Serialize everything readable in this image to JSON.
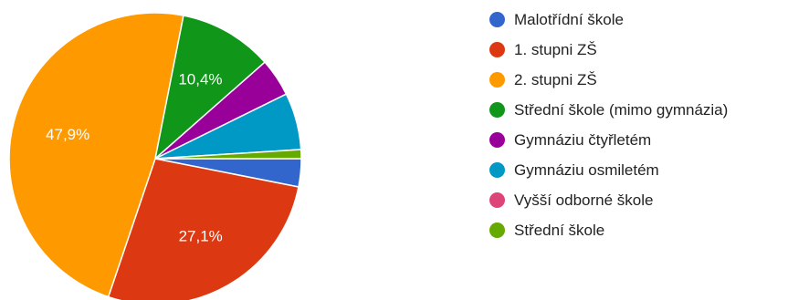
{
  "chart_data": {
    "type": "pie",
    "categories": [
      "Malotřídní škole",
      "1. stupni ZŠ",
      "2. stupni ZŠ",
      "Střední škole (mimo gymnázia)",
      "Gymnáziu čtyřletém",
      "Gymnáziu osmiletém",
      "Vyšší odborné škole",
      "Střední škole"
    ],
    "values": [
      3.1,
      27.1,
      47.9,
      10.4,
      4.2,
      6.3,
      0,
      1.0
    ],
    "colors": [
      "#3366cc",
      "#dc3912",
      "#ff9900",
      "#109618",
      "#990099",
      "#0099c6",
      "#dd4477",
      "#66aa00"
    ],
    "slice_labels": [
      "",
      "27,1%",
      "47,9%",
      "10,4%",
      "",
      "",
      "",
      ""
    ],
    "legend_position": "right"
  }
}
